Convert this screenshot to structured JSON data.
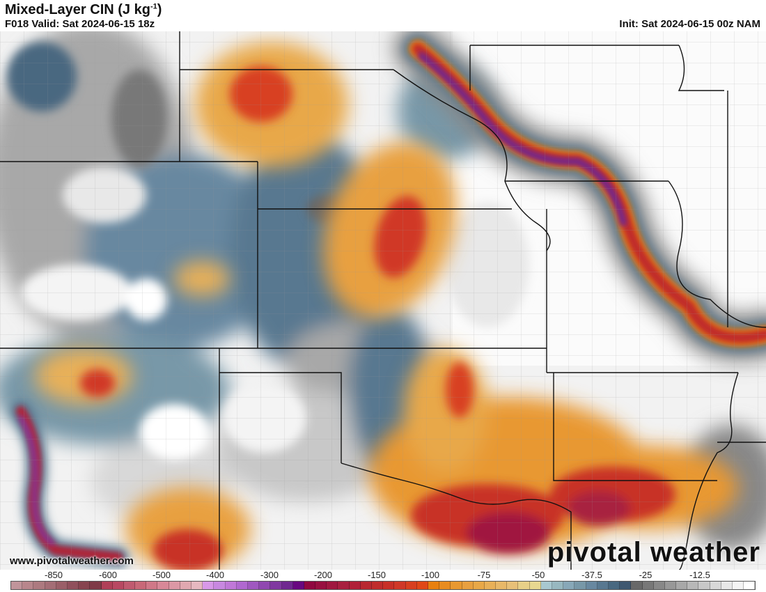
{
  "header": {
    "title": "Mixed-Layer CIN (J kg",
    "title_sup": "-1",
    "title_end": ")",
    "valid": "F018 Valid: Sat 2024-06-15 18z",
    "init": "Init: Sat 2024-06-15 00z NAM"
  },
  "watermark": {
    "url": "www.pivotalweather.com",
    "logo": "pivotal weather"
  },
  "colorbar": {
    "labels": [
      "-850",
      "-600",
      "-500",
      "-400",
      "-300",
      "-200",
      "-150",
      "-100",
      "-75",
      "-50",
      "-37.5",
      "-25",
      "-12.5"
    ],
    "colors": [
      "#c0949a",
      "#b8868c",
      "#ad7a80",
      "#a46e76",
      "#9a5f68",
      "#90505c",
      "#87444f",
      "#7f3a47",
      "#b04058",
      "#b84862",
      "#c05a70",
      "#c86878",
      "#d07888",
      "#d88898",
      "#dc98a5",
      "#e0a8b0",
      "#e6b8c0",
      "#d898e8",
      "#c888e0",
      "#c078d8",
      "#b068d0",
      "#a058c0",
      "#9048b0",
      "#8038a0",
      "#702890",
      "#680880",
      "#900840",
      "#981040",
      "#a01840",
      "#a82040",
      "#b02038",
      "#b82830",
      "#c02c2c",
      "#c83028",
      "#d03828",
      "#d84020",
      "#e04818",
      "#e88010",
      "#e88c20",
      "#e89830",
      "#e8a040",
      "#e8a848",
      "#e8b058",
      "#e8b868",
      "#e8c078",
      "#e8d088",
      "#e8d890",
      "#a8c8d0",
      "#98b8c0",
      "#88a8b8",
      "#7898a8",
      "#6888a0",
      "#587890",
      "#486880",
      "#405870",
      "#686868",
      "#787878",
      "#888888",
      "#989898",
      "#a8a8a8",
      "#b8b8b8",
      "#c8c8c8",
      "#d8d8d8",
      "#e8e8e8",
      "#f4f4f4",
      "#ffffff"
    ]
  }
}
